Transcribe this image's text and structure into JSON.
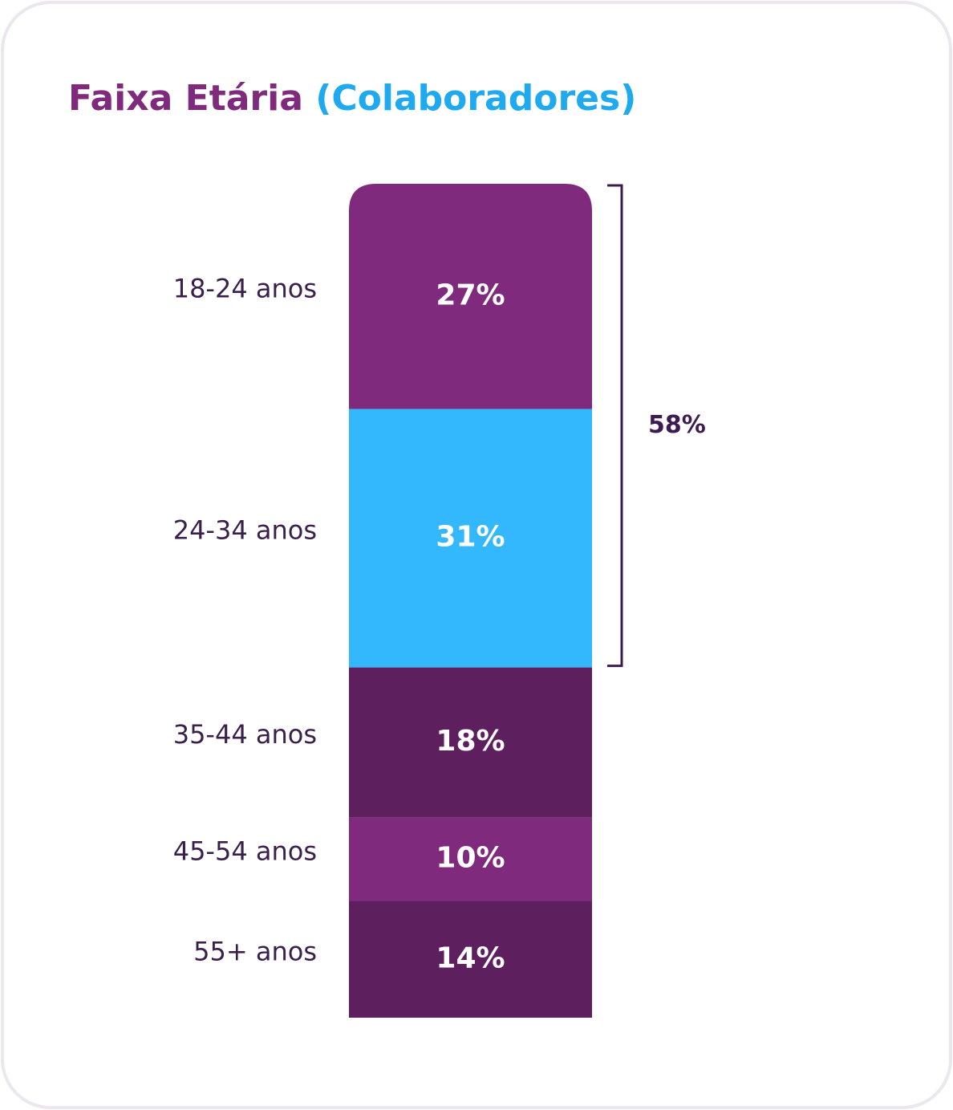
{
  "chart_data": {
    "type": "stacked_bar",
    "title": "Faixa Etária",
    "subtitle": "(Colaboradores)",
    "categories": [
      "18-24 anos",
      "24-34 anos",
      "35-44 anos",
      "45-54 anos",
      "55+ anos"
    ],
    "values": [
      27,
      31,
      18,
      10,
      14
    ],
    "value_labels": [
      "27%",
      "31%",
      "18%",
      "10%",
      "14%"
    ],
    "colors": [
      "#7f2a7c",
      "#33b8fd",
      "#5e1f5f",
      "#7f2a7c",
      "#5e1f5f"
    ],
    "bracket": {
      "value": 58,
      "label": "58%"
    }
  }
}
